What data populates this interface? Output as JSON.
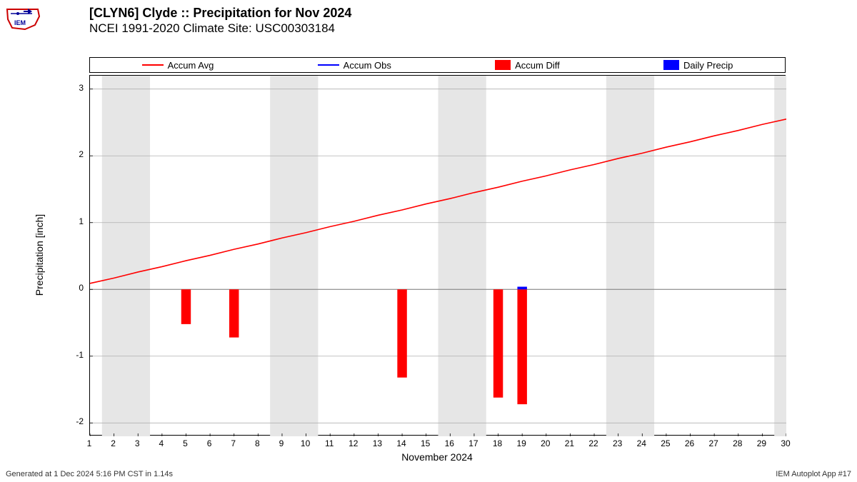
{
  "title1": "[CLYN6] Clyde :: Precipitation for Nov 2024",
  "title2": "NCEI 1991-2020 Climate Site: USC00303184",
  "ylabel": "Precipitation [inch]",
  "xlabel": "November 2024",
  "footer_left": "Generated at 1 Dec 2024 5:16 PM CST in 1.14s",
  "footer_right": "IEM Autoplot App #17",
  "legend": {
    "items": [
      {
        "label": "Accum Avg",
        "type": "line",
        "color": "#ff0000"
      },
      {
        "label": "Accum Obs",
        "type": "line",
        "color": "#0000ff"
      },
      {
        "label": "Accum Diff",
        "type": "box",
        "color": "#ff0000"
      },
      {
        "label": "Daily Precip",
        "type": "box",
        "color": "#0000ff"
      }
    ]
  },
  "chart": {
    "type": "mixed",
    "x_domain": [
      1,
      30
    ],
    "y_domain": [
      -2.2,
      3.2
    ],
    "y_ticks": [
      -2,
      -1,
      0,
      1,
      2,
      3
    ],
    "x_ticks": [
      1,
      2,
      3,
      4,
      5,
      6,
      7,
      8,
      9,
      10,
      11,
      12,
      13,
      14,
      15,
      16,
      17,
      18,
      19,
      20,
      21,
      22,
      23,
      24,
      25,
      26,
      27,
      28,
      29,
      30
    ],
    "gridline_color": "#b0b0b0",
    "grid_linewidth": 0.8,
    "zero_line_color": "#808080",
    "plot_border_color": "#000000",
    "background_color": "#ffffff",
    "weekend_band_color": "#e6e6e6",
    "weekend_bands": [
      [
        2,
        3
      ],
      [
        9,
        10
      ],
      [
        16,
        17
      ],
      [
        23,
        24
      ],
      [
        30,
        30
      ]
    ],
    "accum_avg": {
      "color": "#ff0000",
      "linewidth": 1.6,
      "points": [
        [
          1,
          0.09
        ],
        [
          2,
          0.17
        ],
        [
          3,
          0.26
        ],
        [
          4,
          0.34
        ],
        [
          5,
          0.43
        ],
        [
          6,
          0.51
        ],
        [
          7,
          0.6
        ],
        [
          8,
          0.68
        ],
        [
          9,
          0.77
        ],
        [
          10,
          0.85
        ],
        [
          11,
          0.94
        ],
        [
          12,
          1.02
        ],
        [
          13,
          1.11
        ],
        [
          14,
          1.19
        ],
        [
          15,
          1.28
        ],
        [
          16,
          1.36
        ],
        [
          17,
          1.45
        ],
        [
          18,
          1.53
        ],
        [
          19,
          1.62
        ],
        [
          20,
          1.7
        ],
        [
          21,
          1.79
        ],
        [
          22,
          1.87
        ],
        [
          23,
          1.96
        ],
        [
          24,
          2.04
        ],
        [
          25,
          2.13
        ],
        [
          26,
          2.21
        ],
        [
          27,
          2.3
        ],
        [
          28,
          2.38
        ],
        [
          29,
          2.47
        ],
        [
          30,
          2.55
        ]
      ]
    },
    "bars_diff": {
      "color": "#ff0000",
      "bar_width": 0.4,
      "data": [
        {
          "x": 5,
          "value": -0.52
        },
        {
          "x": 7,
          "value": -0.72
        },
        {
          "x": 14,
          "value": -1.32
        },
        {
          "x": 18,
          "value": -1.62
        },
        {
          "x": 19,
          "value": -1.72
        }
      ]
    },
    "bars_precip": {
      "color": "#0000ff",
      "bar_width": 0.4,
      "data": [
        {
          "x": 19,
          "value": 0.04
        }
      ]
    },
    "title_fontsize": 18,
    "label_fontsize": 14,
    "tick_fontsize": 12
  }
}
